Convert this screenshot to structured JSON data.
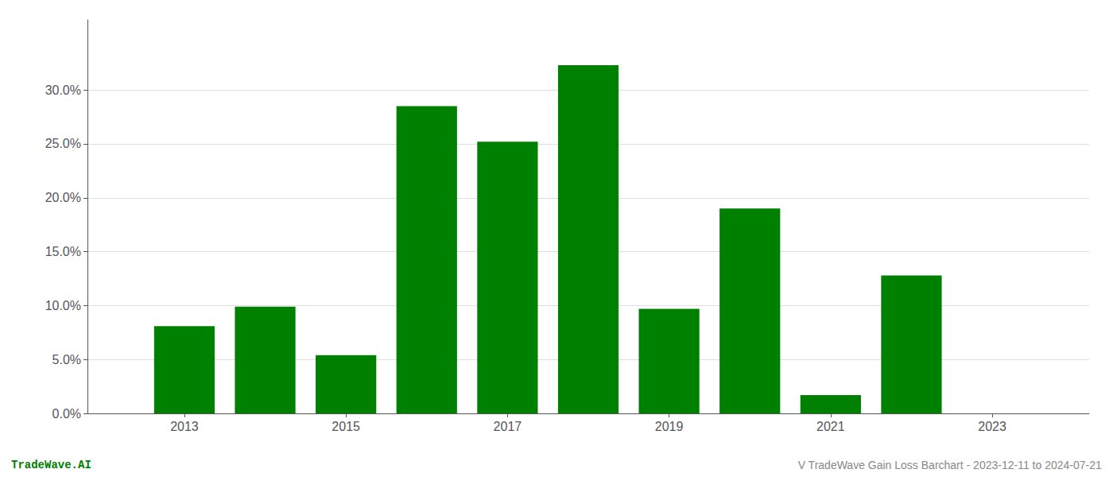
{
  "chart_data": {
    "type": "bar",
    "x": [
      2013,
      2014,
      2015,
      2016,
      2017,
      2018,
      2019,
      2020,
      2021,
      2022
    ],
    "values": [
      0.081,
      0.099,
      0.054,
      0.285,
      0.252,
      0.323,
      0.097,
      0.19,
      0.017,
      0.128
    ],
    "color": "#008000",
    "xlim": [
      2011.8,
      2024.2
    ],
    "xticks": [
      2013,
      2015,
      2017,
      2019,
      2021,
      2023
    ],
    "ylim": [
      0,
      0.365
    ],
    "yticks": [
      {
        "value": 0.0,
        "label": "0.0%"
      },
      {
        "value": 0.05,
        "label": "5.0%"
      },
      {
        "value": 0.1,
        "label": "10.0%"
      },
      {
        "value": 0.15,
        "label": "15.0%"
      },
      {
        "value": 0.2,
        "label": "20.0%"
      },
      {
        "value": 0.25,
        "label": "25.0%"
      },
      {
        "value": 0.3,
        "label": "30.0%"
      }
    ],
    "grid": true,
    "annotations": [
      {
        "text": "TradeWave.AI",
        "color": "#008000"
      },
      {
        "text": "V TradeWave Gain Loss Barchart - 2023-12-11 to 2024-07-21",
        "color": "#888888"
      }
    ]
  }
}
